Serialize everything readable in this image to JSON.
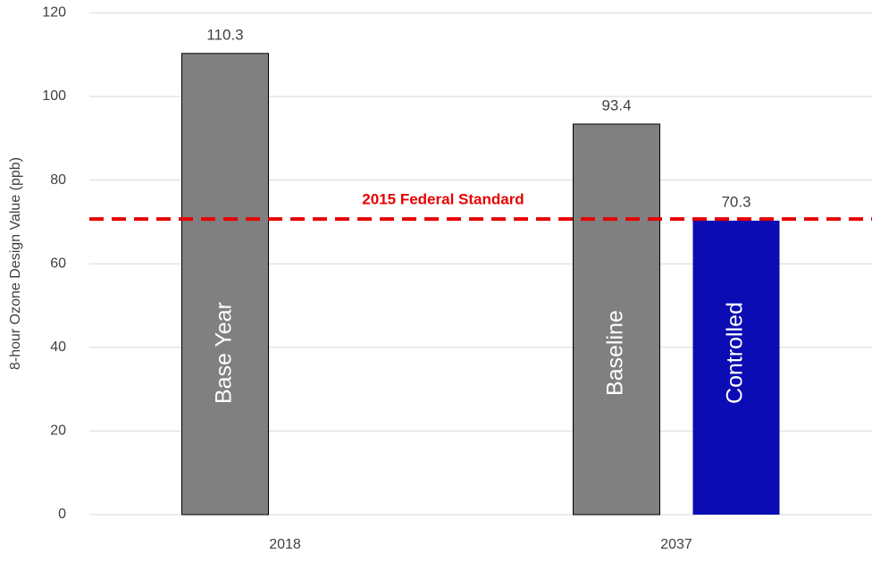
{
  "chart_data": {
    "type": "bar",
    "y_label": "8-hour Ozone Design Value (ppb)",
    "categories": [
      "2018",
      "2037"
    ],
    "series": [
      {
        "name": "Base Year",
        "color": "#808080",
        "values": [
          110.3,
          null
        ]
      },
      {
        "name": "Baseline",
        "color": "#808080",
        "values": [
          null,
          93.4
        ]
      },
      {
        "name": "Controlled",
        "color": "#0c0cb4",
        "values": [
          null,
          70.3
        ]
      }
    ],
    "ylim": [
      0,
      120
    ],
    "yticks": [
      0,
      20,
      40,
      60,
      80,
      100,
      120
    ],
    "grid": true,
    "reference_line": {
      "value": 70.7,
      "label": "2015 Federal Standard",
      "color": "#e60000"
    }
  }
}
